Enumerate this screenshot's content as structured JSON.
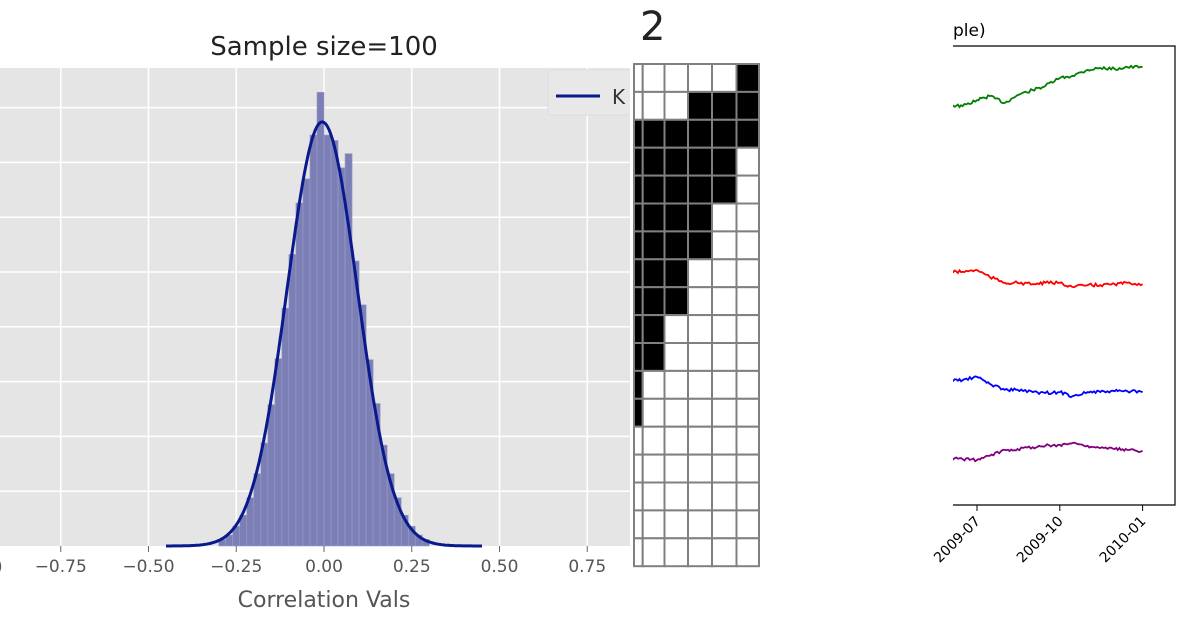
{
  "chart_data": [
    {
      "type": "bar",
      "title": "Sample size=100",
      "xlabel": "Correlation Vals",
      "ylabel": "",
      "xlim": [
        -0.93,
        0.87
      ],
      "ylim": [
        0,
        4.36
      ],
      "grid": true,
      "background": "#e5e5e5",
      "x_ticks": [
        -0.75,
        -0.5,
        -0.25,
        0.0,
        0.25,
        0.5,
        0.75
      ],
      "x_tick_labels": [
        "−0.75",
        "−0.50",
        "−0.25",
        "0.00",
        "0.25",
        "0.50",
        "0.75"
      ],
      "partial_left_tick_label": ")",
      "y_gridlines": [
        0.5,
        1.0,
        1.5,
        2.0,
        2.5,
        3.0,
        3.5,
        4.0
      ],
      "histogram": {
        "bin_width": 0.02,
        "bin_centers": [
          -0.29,
          -0.27,
          -0.25,
          -0.23,
          -0.21,
          -0.19,
          -0.17,
          -0.15,
          -0.13,
          -0.11,
          -0.09,
          -0.07,
          -0.05,
          -0.03,
          -0.01,
          0.01,
          0.03,
          0.05,
          0.07,
          0.09,
          0.11,
          0.13,
          0.15,
          0.17,
          0.19,
          0.21,
          0.23,
          0.25,
          0.27,
          0.29
        ],
        "values": [
          0.06,
          0.1,
          0.18,
          0.28,
          0.44,
          0.66,
          0.94,
          1.29,
          1.71,
          2.17,
          2.66,
          3.13,
          3.35,
          3.75,
          4.14,
          3.75,
          3.7,
          3.45,
          3.58,
          2.6,
          2.2,
          1.7,
          1.3,
          0.92,
          0.66,
          0.44,
          0.28,
          0.18,
          0.1,
          0.06
        ],
        "color": "#7b7fb5"
      },
      "kde": {
        "mean": -0.005,
        "sd": 0.1,
        "peak": 3.87,
        "range": [
          -0.45,
          0.45
        ],
        "color": "#0a1a8c"
      },
      "legend": {
        "placement": "top-right",
        "entries": [
          {
            "label": "K",
            "color": "#0a1a8c"
          }
        ]
      }
    },
    {
      "type": "heatmap",
      "title": "2",
      "columns": 6,
      "cells": [
        [
          0,
          0,
          0,
          0,
          0,
          1
        ],
        [
          0,
          0,
          0,
          1,
          1,
          1
        ],
        [
          1,
          1,
          1,
          1,
          1,
          1
        ],
        [
          1,
          1,
          1,
          1,
          1,
          0
        ],
        [
          1,
          1,
          1,
          1,
          1,
          0
        ],
        [
          1,
          1,
          1,
          1,
          0,
          0
        ],
        [
          1,
          1,
          1,
          1,
          0,
          0
        ],
        [
          1,
          1,
          1,
          0,
          0,
          0
        ],
        [
          1,
          1,
          1,
          0,
          0,
          0
        ],
        [
          1,
          1,
          0,
          0,
          0,
          0
        ],
        [
          1,
          1,
          0,
          0,
          0,
          0
        ],
        [
          1,
          0,
          0,
          0,
          0,
          0
        ],
        [
          1,
          0,
          0,
          0,
          0,
          0
        ],
        [
          0,
          0,
          0,
          0,
          0,
          0
        ],
        [
          0,
          0,
          0,
          0,
          0,
          0
        ],
        [
          0,
          0,
          0,
          0,
          0,
          0
        ],
        [
          0,
          0,
          0,
          0,
          0,
          0
        ],
        [
          0,
          0,
          0,
          0,
          0,
          0
        ]
      ],
      "colors": {
        "on": "#000000",
        "off": "#ffffff",
        "grid": "#808080"
      }
    },
    {
      "type": "line",
      "title": "ple)",
      "x_tick_labels": [
        "2009-07",
        "2009-10",
        "2010-01"
      ],
      "x_ticks": [
        "2009-07-01",
        "2009-10-01",
        "2010-01-01"
      ],
      "ylim": [
        0,
        100
      ],
      "x": [
        "2009-06-01",
        "2009-06-15",
        "2009-07-01",
        "2009-07-15",
        "2009-08-01",
        "2009-08-15",
        "2009-09-01",
        "2009-09-15",
        "2009-10-01",
        "2009-10-15",
        "2009-11-01",
        "2009-11-15",
        "2009-12-01",
        "2009-12-15",
        "2010-01-01"
      ],
      "series": [
        {
          "color": "#008000",
          "values": [
            87.1,
            86.9,
            88.2,
            89.1,
            87.6,
            89.3,
            90.4,
            91.3,
            93.0,
            93.5,
            94.8,
            95.2,
            95.0,
            95.4,
            95.4
          ]
        },
        {
          "color": "#ff0000",
          "values": [
            50.8,
            50.8,
            51.2,
            49.7,
            48.4,
            48.4,
            48.1,
            48.4,
            48.4,
            47.5,
            47.9,
            47.9,
            48.1,
            48.4,
            48.1
          ]
        },
        {
          "color": "#0000ff",
          "values": [
            27.2,
            27.2,
            27.9,
            26.4,
            25.1,
            25.1,
            24.6,
            24.4,
            24.6,
            23.7,
            24.6,
            24.6,
            24.8,
            24.8,
            24.6
          ]
        },
        {
          "color": "#800080",
          "values": [
            10.2,
            10.0,
            9.8,
            10.7,
            12.0,
            12.2,
            12.6,
            12.9,
            13.1,
            13.5,
            12.9,
            12.4,
            12.2,
            12.0,
            11.8
          ]
        }
      ]
    }
  ]
}
